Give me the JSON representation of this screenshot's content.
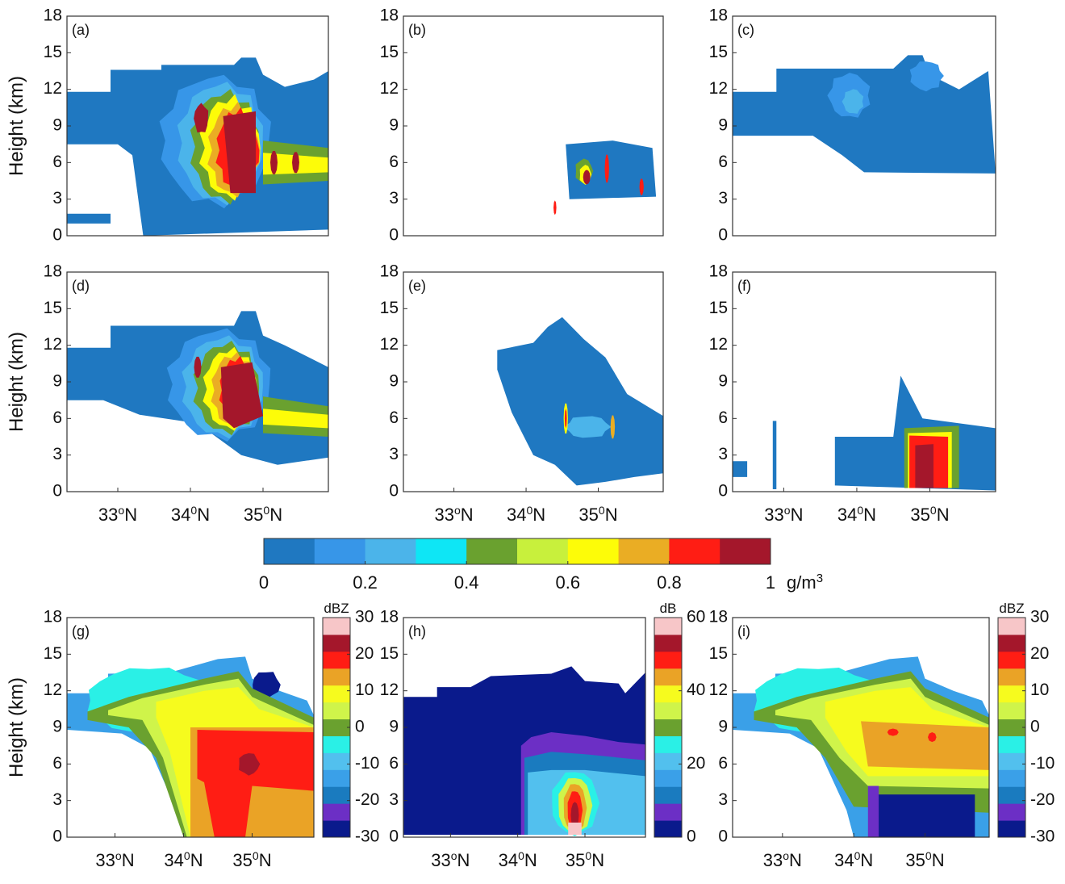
{
  "chart_data": [
    {
      "type": "heatmap",
      "label": "(a)",
      "ylabel": "Height (km)",
      "yticks": [
        "0",
        "3",
        "6",
        "9",
        "12",
        "15",
        "18"
      ],
      "ylim": [
        0,
        18
      ],
      "xlim": [
        32.3,
        35.9
      ],
      "xticks": [],
      "colorbar": "lwc"
    },
    {
      "type": "heatmap",
      "label": "(b)",
      "ylabel": "",
      "yticks": [
        "0",
        "3",
        "6",
        "9",
        "12",
        "15",
        "18"
      ],
      "ylim": [
        0,
        18
      ],
      "xlim": [
        32.3,
        35.9
      ],
      "xticks": [],
      "colorbar": "lwc"
    },
    {
      "type": "heatmap",
      "label": "(c)",
      "ylabel": "",
      "yticks": [
        "0",
        "3",
        "6",
        "9",
        "12",
        "15",
        "18"
      ],
      "ylim": [
        0,
        18
      ],
      "xlim": [
        32.3,
        35.9
      ],
      "xticks": [],
      "colorbar": "lwc"
    },
    {
      "type": "heatmap",
      "label": "(d)",
      "ylabel": "Height (km)",
      "yticks": [
        "0",
        "3",
        "6",
        "9",
        "12",
        "15",
        "18"
      ],
      "ylim": [
        0,
        18
      ],
      "xlim": [
        32.3,
        35.9
      ],
      "xticks": [
        {
          "v": 33,
          "base": "33",
          "sup": "o",
          "suffix": "N"
        },
        {
          "v": 34,
          "base": "34",
          "sup": "0",
          "suffix": "N"
        },
        {
          "v": 35,
          "base": "35",
          "sup": "0",
          "suffix": "N"
        }
      ],
      "colorbar": "lwc"
    },
    {
      "type": "heatmap",
      "label": "(e)",
      "ylabel": "",
      "yticks": [
        "0",
        "3",
        "6",
        "9",
        "12",
        "15",
        "18"
      ],
      "ylim": [
        0,
        18
      ],
      "xlim": [
        32.3,
        35.9
      ],
      "xticks": [
        {
          "v": 33,
          "base": "33",
          "sup": "o",
          "suffix": "N"
        },
        {
          "v": 34,
          "base": "34",
          "sup": "0",
          "suffix": "N"
        },
        {
          "v": 35,
          "base": "35",
          "sup": "0",
          "suffix": "N"
        }
      ],
      "colorbar": "lwc"
    },
    {
      "type": "heatmap",
      "label": "(f)",
      "ylabel": "",
      "yticks": [
        "0",
        "3",
        "6",
        "9",
        "12",
        "15",
        "18"
      ],
      "ylim": [
        0,
        18
      ],
      "xlim": [
        32.3,
        35.9
      ],
      "xticks": [
        {
          "v": 33,
          "base": "33",
          "sup": "o",
          "suffix": "N"
        },
        {
          "v": 34,
          "base": "34",
          "sup": "0",
          "suffix": "N"
        },
        {
          "v": 35,
          "base": "35",
          "sup": "0",
          "suffix": "N"
        }
      ],
      "colorbar": "lwc"
    },
    {
      "type": "heatmap",
      "label": "(g)",
      "ylabel": "Height (km)",
      "yticks": [
        "0",
        "3",
        "6",
        "9",
        "12",
        "15",
        "18"
      ],
      "ylim": [
        0,
        18
      ],
      "xlim": [
        32.3,
        35.9
      ],
      "xticks": [
        {
          "v": 33,
          "base": "33",
          "sup": "o",
          "suffix": "N"
        },
        {
          "v": 34,
          "base": "34",
          "sup": "0",
          "suffix": "N"
        },
        {
          "v": 35,
          "base": "35",
          "sup": "0",
          "suffix": "N"
        }
      ],
      "colorbar": "dbz",
      "colorbar_title": "dBZ",
      "colorbar_ticks": [
        "30",
        "20",
        "10",
        "0",
        "-10",
        "-20",
        "-30"
      ]
    },
    {
      "type": "heatmap",
      "label": "(h)",
      "ylabel": "",
      "yticks": [
        "0",
        "3",
        "6",
        "9",
        "12",
        "15",
        "18"
      ],
      "ylim": [
        0,
        18
      ],
      "xlim": [
        32.3,
        35.9
      ],
      "xticks": [
        {
          "v": 33,
          "base": "33",
          "sup": "o",
          "suffix": "N"
        },
        {
          "v": 34,
          "base": "34",
          "sup": "0",
          "suffix": "N"
        },
        {
          "v": 35,
          "base": "35",
          "sup": "0",
          "suffix": "N"
        }
      ],
      "colorbar": "db",
      "colorbar_title": "dB",
      "colorbar_ticks": [
        "60",
        "40",
        "20",
        "0"
      ]
    },
    {
      "type": "heatmap",
      "label": "(i)",
      "ylabel": "",
      "yticks": [
        "0",
        "3",
        "6",
        "9",
        "12",
        "15",
        "18"
      ],
      "ylim": [
        0,
        18
      ],
      "xlim": [
        32.3,
        35.9
      ],
      "xticks": [
        {
          "v": 33,
          "base": "33",
          "sup": "o",
          "suffix": "N"
        },
        {
          "v": 34,
          "base": "34",
          "sup": "0",
          "suffix": "N"
        },
        {
          "v": 35,
          "base": "35",
          "sup": "0",
          "suffix": "N"
        }
      ],
      "colorbar": "dbz",
      "colorbar_title": "dBZ",
      "colorbar_ticks": [
        "30",
        "20",
        "10",
        "0",
        "-10",
        "-20",
        "-30"
      ]
    }
  ],
  "colorbar_main": {
    "ticks": [
      "0",
      "0.2",
      "0.4",
      "0.6",
      "0.8",
      "1"
    ],
    "unit_base": "g/m",
    "unit_sup": "3",
    "colors": [
      "#1f78c1",
      "#3796e8",
      "#4bb4ea",
      "#0ee6f5",
      "#6aa12f",
      "#c8f03c",
      "#fdfc08",
      "#eaad24",
      "#ff1d14",
      "#a4172b"
    ]
  },
  "colorbar_dbz_colors": [
    "#0a1a8c",
    "#6c2fc5",
    "#1a7bbf",
    "#3aa0e8",
    "#52c0ee",
    "#2af0e6",
    "#6aa12f",
    "#cff44a",
    "#f6fb1e",
    "#eaa326",
    "#ff1d14",
    "#a4172b",
    "#f7c6c8"
  ],
  "colorbar_db_colors": [
    "#0a1a8c",
    "#6c2fc5",
    "#1a7bbf",
    "#3aa0e8",
    "#52c0ee",
    "#2af0e6",
    "#6aa12f",
    "#cff44a",
    "#f6fb1e",
    "#eaa326",
    "#ff1d14",
    "#a4172b",
    "#f7c6c8"
  ]
}
